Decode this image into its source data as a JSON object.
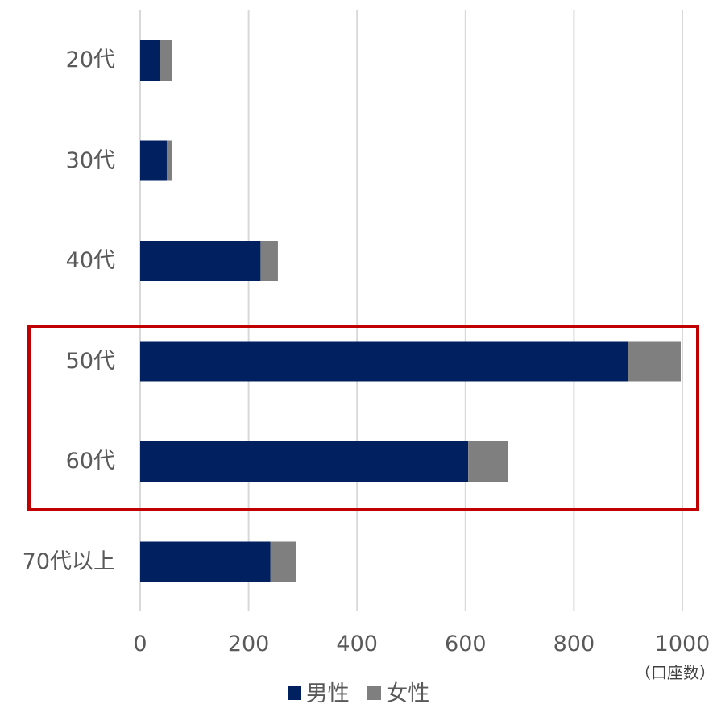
{
  "chart_data": {
    "type": "bar",
    "orientation": "horizontal",
    "stacked": true,
    "categories": [
      "20代",
      "30代",
      "40代",
      "50代",
      "60代",
      "70代以上"
    ],
    "series": [
      {
        "name": "男性",
        "color": "#002060",
        "values": [
          36,
          49,
          222,
          900,
          605,
          240
        ]
      },
      {
        "name": "女性",
        "color": "#7f7f7f",
        "values": [
          23,
          10,
          32,
          97,
          74,
          48
        ]
      }
    ],
    "xlim": [
      0,
      1000
    ],
    "xticks": [
      0,
      200,
      400,
      600,
      800,
      1000
    ],
    "xtick_labels": [
      "0",
      "200",
      "400",
      "600",
      "800",
      "1000"
    ],
    "unit": "（口座数）",
    "grid": "vertical",
    "legend": "bottom",
    "highlight": {
      "categories": [
        "50代",
        "60代"
      ],
      "color": "#c00000"
    }
  }
}
